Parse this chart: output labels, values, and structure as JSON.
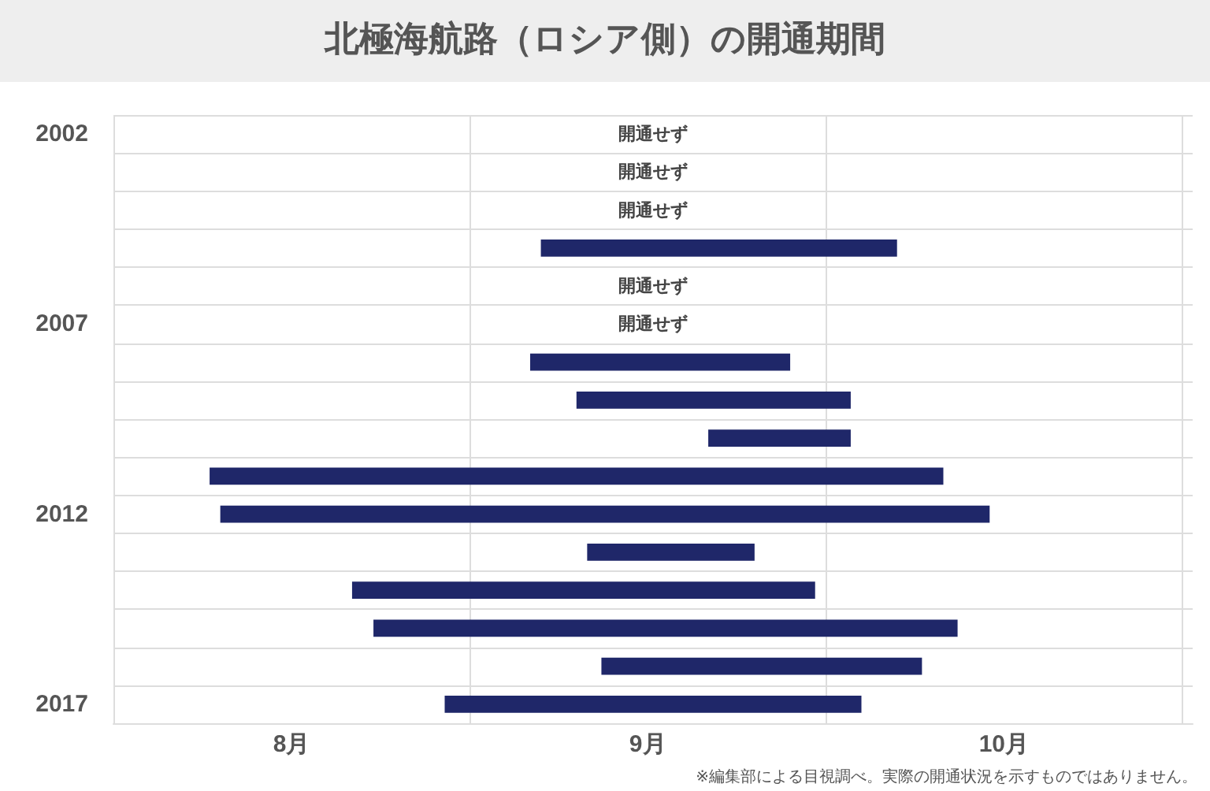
{
  "chart_data": {
    "type": "bar",
    "orientation": "horizontal",
    "title": "北極海航路（ロシア側）の開通期間",
    "categories": [
      "2002",
      null,
      null,
      null,
      null,
      "2007",
      null,
      null,
      null,
      null,
      "2012",
      null,
      null,
      null,
      null,
      "2017"
    ],
    "base": [
      null,
      null,
      null,
      9.2,
      null,
      null,
      9.17,
      9.3,
      9.67,
      8.27,
      8.3,
      9.33,
      8.67,
      8.73,
      9.37,
      8.93
    ],
    "values": [
      null,
      null,
      null,
      1.0,
      null,
      null,
      0.73,
      0.77,
      0.4,
      2.06,
      2.16,
      0.47,
      1.3,
      1.64,
      0.9,
      1.17
    ],
    "value_labels": [
      "開通せず",
      "開通せず",
      "開通せず",
      null,
      "開通せず",
      "開通せず",
      null,
      null,
      null,
      null,
      null,
      null,
      null,
      null,
      null,
      null
    ],
    "color": "#1f2769",
    "xlim": [
      8,
      11.03
    ],
    "xticks": [
      {
        "value": 8,
        "label": null
      },
      {
        "value": 8.5,
        "label": "8月"
      },
      {
        "value": 9,
        "label": null
      },
      {
        "value": 9.5,
        "label": "9月"
      },
      {
        "value": 10,
        "label": null
      },
      {
        "value": 10.5,
        "label": "10月"
      },
      {
        "value": 11,
        "label": null
      }
    ],
    "grid": true,
    "annotations": [
      "※編集部による目視調べ。実際の開通状況を示すものではありません。"
    ]
  }
}
